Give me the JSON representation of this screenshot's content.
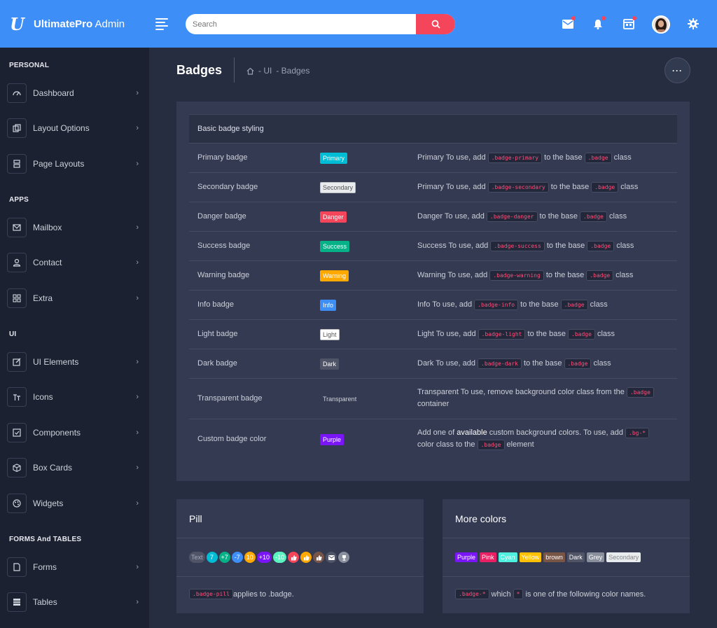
{
  "header": {
    "logo_letter": "U",
    "brand_bold": "UltimatePro",
    "brand_light": " Admin",
    "search_placeholder": "Search",
    "icons": [
      "menu-icon",
      "search-icon",
      "mail-icon",
      "bell-icon",
      "calendar-icon",
      "avatar",
      "gear-icon"
    ],
    "accent_color": "#3e8ef7",
    "search_button_color": "#f4455b"
  },
  "sidebar": {
    "sections": [
      "PERSONAL",
      "APPS",
      "UI",
      "FORMS And TABLES"
    ],
    "items": [
      {
        "label": "Dashboard",
        "icon": "speedometer-icon"
      },
      {
        "label": "Layout Options",
        "icon": "copy-icon"
      },
      {
        "label": "Page Layouts",
        "icon": "layers-icon"
      },
      {
        "label": "Mailbox",
        "icon": "mail-icon"
      },
      {
        "label": "Contact",
        "icon": "user-icon"
      },
      {
        "label": "Extra",
        "icon": "grid-icon"
      },
      {
        "label": "UI Elements",
        "icon": "edit-icon"
      },
      {
        "label": "Icons",
        "icon": "text-icon"
      },
      {
        "label": "Components",
        "icon": "checkbox-icon"
      },
      {
        "label": "Box Cards",
        "icon": "box-icon"
      },
      {
        "label": "Widgets",
        "icon": "palette-icon"
      },
      {
        "label": "Forms",
        "icon": "file-icon"
      },
      {
        "label": "Tables",
        "icon": "table-icon"
      }
    ]
  },
  "page": {
    "title": "Badges",
    "breadcrumb": [
      "- UI",
      "- Badges"
    ],
    "more_label": "···"
  },
  "table": {
    "header": "Basic badge styling",
    "rows": [
      {
        "name": "Primary badge",
        "badge": "Primary",
        "color": "#00bcd4",
        "desc_pre": "Primary To use, add ",
        "code1": ".badge-primary",
        "desc_mid": " to the base ",
        "code2": ".badge",
        "desc_post": " class"
      },
      {
        "name": "Secondary badge",
        "badge": "Secondary",
        "color": "#e9ecef",
        "desc_pre": "Primary To use, add ",
        "code1": ".badge-secondary",
        "desc_mid": " to the base ",
        "code2": ".badge",
        "desc_post": " class"
      },
      {
        "name": "Danger badge",
        "badge": "Danger",
        "color": "#f4455b",
        "desc_pre": "Danger To use, add ",
        "code1": ".badge-danger",
        "desc_mid": " to the base ",
        "code2": ".badge",
        "desc_post": " class"
      },
      {
        "name": "Success badge",
        "badge": "Success",
        "color": "#05b187",
        "desc_pre": "Success To use, add ",
        "code1": ".badge-success",
        "desc_mid": " to the base ",
        "code2": ".badge",
        "desc_post": " class"
      },
      {
        "name": "Warning badge",
        "badge": "Warning",
        "color": "#ffa800",
        "desc_pre": "Warning To use, add ",
        "code1": ".badge-warning",
        "desc_mid": " to the base ",
        "code2": ".badge",
        "desc_post": " class"
      },
      {
        "name": "Info badge",
        "badge": "Info",
        "color": "#3e8ef7",
        "desc_pre": "Info To use, add ",
        "code1": ".badge-info",
        "desc_mid": " to the base ",
        "code2": ".badge",
        "desc_post": " class"
      },
      {
        "name": "Light badge",
        "badge": "Light",
        "color": "#ffffff",
        "desc_pre": "Light To use, add ",
        "code1": ".badge-light",
        "desc_mid": " to the base ",
        "code2": ".badge",
        "desc_post": " class"
      },
      {
        "name": "Dark badge",
        "badge": "Dark",
        "color": "#4f5467",
        "desc_pre": "Dark To use, add ",
        "code1": ".badge-dark",
        "desc_mid": " to the base ",
        "code2": ".badge",
        "desc_post": " class"
      }
    ],
    "transparent": {
      "name": "Transparent badge",
      "badge": "Transparent",
      "desc": "Transparent To use, remove background color class from the ",
      "code": ".badge",
      "desc_post": "container"
    },
    "custom": {
      "name": "Custom badge color",
      "badge": "Purple",
      "color": "#7a15f7",
      "desc_pre": "Add one of ",
      "desc_bold": "available",
      "desc_mid": " custom background colors. To use, add ",
      "code1": ".bg-*",
      "desc_mid2": "color class to the ",
      "code2": ".badge",
      "desc_post": " element"
    }
  },
  "pill_card": {
    "title": "Pill",
    "pills": [
      {
        "text": "Text",
        "color": "#4f5467",
        "fg": "#aab"
      },
      {
        "text": "7",
        "color": "#00bcd4",
        "fg": "#fff"
      },
      {
        "text": "+7",
        "color": "#05b187",
        "fg": "#fff"
      },
      {
        "text": "-7",
        "color": "#3e8ef7",
        "fg": "#fff"
      },
      {
        "text": "10",
        "color": "#ffa800",
        "fg": "#fff"
      },
      {
        "text": "+10",
        "color": "#7a15f7",
        "fg": "#fff"
      },
      {
        "text": "-10",
        "color": "#5cf3c2",
        "fg": "#fff"
      }
    ],
    "icon_pills": [
      {
        "icon": "thumbs-up-icon",
        "color": "#f4455b"
      },
      {
        "icon": "thumbs-up-icon",
        "color": "#ffa800"
      },
      {
        "icon": "thumbs-up-icon",
        "color": "#795548"
      },
      {
        "icon": "mail-icon",
        "color": "#4f5467"
      },
      {
        "icon": "trophy-icon",
        "color": "#8a8f9e"
      }
    ],
    "code": ".badge-pill",
    "text": " applies to .badge."
  },
  "colors_card": {
    "title": "More colors",
    "tags": [
      {
        "text": "Purple",
        "color": "#7a15f7",
        "fg": "#fff"
      },
      {
        "text": "Pink",
        "color": "#e91e63",
        "fg": "#fff"
      },
      {
        "text": "Cyan",
        "color": "#4ff0e0",
        "fg": "#fff"
      },
      {
        "text": "Yellow",
        "color": "#ffc107",
        "fg": "#fff"
      },
      {
        "text": "brown",
        "color": "#795548",
        "fg": "#fff"
      },
      {
        "text": "Dark",
        "color": "#4f5467",
        "fg": "#fff"
      },
      {
        "text": "Grey",
        "color": "#8a8f9e",
        "fg": "#fff"
      },
      {
        "text": "Secondary",
        "color": "#e9ecef",
        "fg": "#888"
      }
    ],
    "code1": ".badge-*",
    "text1": " which ",
    "code2": "*",
    "text2": " is one of the following color names."
  }
}
